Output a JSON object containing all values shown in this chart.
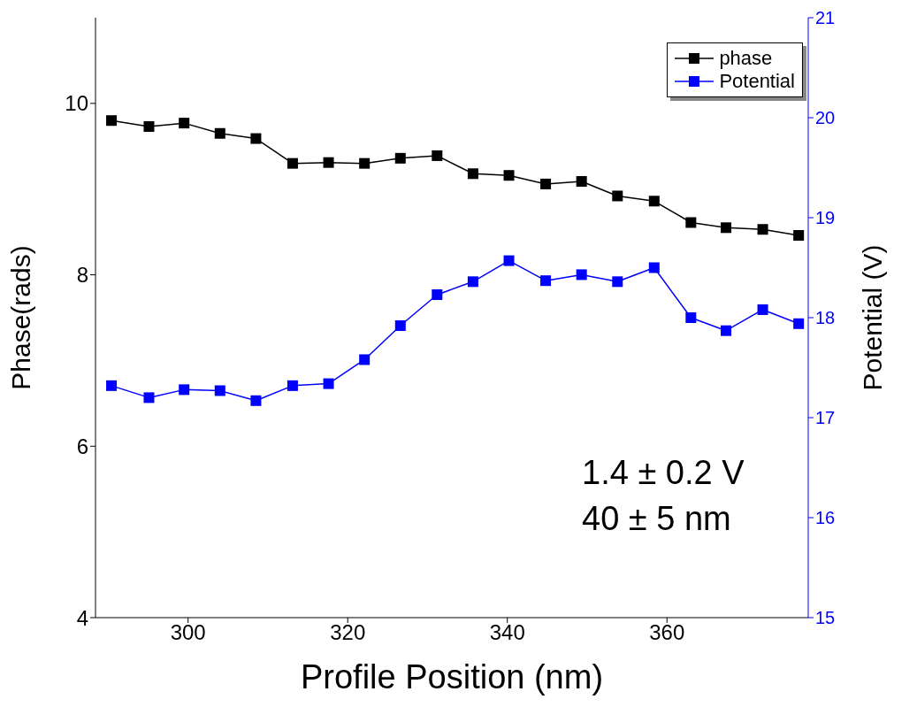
{
  "chart_data": {
    "type": "line",
    "xlabel": "Profile Position (nm)",
    "ylabel": "Phase(rads)",
    "y2label": "Potential (V)",
    "x": [
      290.4,
      295.1,
      299.5,
      304.0,
      308.5,
      313.1,
      317.6,
      322.1,
      326.6,
      331.2,
      335.7,
      340.2,
      344.8,
      349.3,
      353.8,
      358.4,
      363.0,
      367.4,
      372.0,
      376.5
    ],
    "series": [
      {
        "name": "phase",
        "color": "#000000",
        "values": [
          9.8,
          9.73,
          9.77,
          9.65,
          9.59,
          9.3,
          9.31,
          9.3,
          9.36,
          9.39,
          9.18,
          9.16,
          9.06,
          9.09,
          8.92,
          8.86,
          8.61,
          8.55,
          8.53,
          8.46
        ]
      },
      {
        "name": "Potential",
        "color": "#0000ff",
        "axis": "y2",
        "values": [
          17.32,
          17.2,
          17.28,
          17.27,
          17.17,
          17.32,
          17.34,
          17.58,
          17.92,
          18.23,
          18.36,
          18.57,
          18.37,
          18.43,
          18.36,
          18.5,
          18.0,
          17.87,
          18.08,
          17.94
        ]
      }
    ],
    "xlim": [
      288.4,
      377.7
    ],
    "xticks": [
      300,
      320,
      340,
      360
    ],
    "ylim": [
      4,
      11
    ],
    "yticks": [
      4,
      6,
      8,
      10
    ],
    "y2lim": [
      15,
      21
    ],
    "y2ticks": [
      15,
      16,
      17,
      18,
      19,
      20,
      21
    ],
    "marker": "square",
    "line_style": "solid",
    "grid": false,
    "legend": "top right",
    "annotations": [
      "1.4 ± 0.2 V",
      "40 ± 5 nm"
    ]
  }
}
